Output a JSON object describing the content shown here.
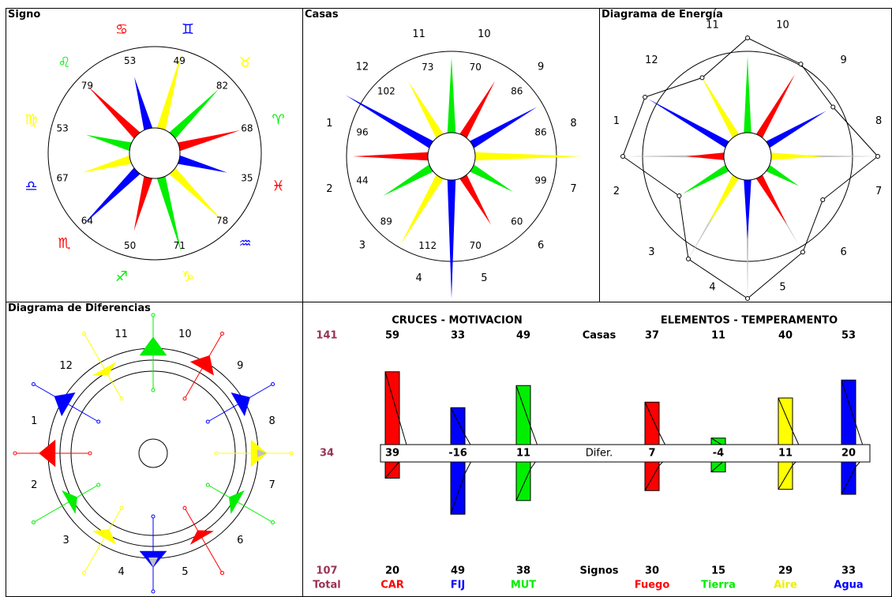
{
  "panels": {
    "signo_title": "Signo",
    "casas_title": "Casas",
    "energia_title": "Diagrama de Energía",
    "diferencias_title": "Diagrama de Diferencias"
  },
  "signo": {
    "ray_values": [
      "68",
      "82",
      "49",
      "53",
      "79",
      "53",
      "67",
      "64",
      "50",
      "71",
      "78",
      "35"
    ],
    "glyphs": [
      "♈",
      "♉",
      "♊",
      "♋",
      "♌",
      "♍",
      "♎",
      "♏",
      "♐",
      "♑",
      "♒",
      "♓"
    ]
  },
  "casas": {
    "house_numbers": [
      "1",
      "2",
      "3",
      "4",
      "5",
      "6",
      "7",
      "8",
      "9",
      "10",
      "11",
      "12"
    ],
    "house_values": [
      "96",
      "44",
      "89",
      "112",
      "70",
      "60",
      "99",
      "86",
      "86",
      "70",
      "73",
      "102"
    ]
  },
  "energia": {
    "house_numbers": [
      "1",
      "2",
      "3",
      "4",
      "5",
      "6",
      "7",
      "8",
      "9",
      "10",
      "11",
      "12"
    ]
  },
  "diferencias": {
    "house_numbers": [
      "1",
      "2",
      "3",
      "4",
      "5",
      "6",
      "7",
      "8",
      "9",
      "10",
      "11",
      "12"
    ]
  },
  "stats": {
    "cruces_title": "CRUCES - MOTIVACION",
    "elementos_title": "ELEMENTOS - TEMPERAMENTO",
    "casas_label": "Casas",
    "difer_label": "Difer.",
    "signos_label": "Signos",
    "total_top": "141",
    "total_mid": "34",
    "total_bottom": "107",
    "total_label": "Total"
  },
  "colors": {
    "fire": "#ff0000",
    "earth": "#00ee00",
    "air": "#ffff00",
    "water": "#0000ff",
    "grey": "#c0c0c0",
    "total": "#993355"
  },
  "chart_data": {
    "type": "bar",
    "categories": [
      "CAR",
      "FIJ",
      "MUT",
      "Fuego",
      "Tierra",
      "Aire",
      "Agua"
    ],
    "series": [
      {
        "name": "Casas",
        "values": [
          59,
          33,
          49,
          37,
          11,
          40,
          53
        ]
      },
      {
        "name": "Difer.",
        "values": [
          39,
          -16,
          11,
          7,
          -4,
          11,
          20
        ]
      },
      {
        "name": "Signos",
        "values": [
          20,
          49,
          38,
          30,
          15,
          29,
          33
        ]
      }
    ],
    "category_colors": [
      "#ff0000",
      "#0000ff",
      "#00ee00",
      "#ff0000",
      "#00ee00",
      "#ffff00",
      "#0000ff"
    ]
  }
}
